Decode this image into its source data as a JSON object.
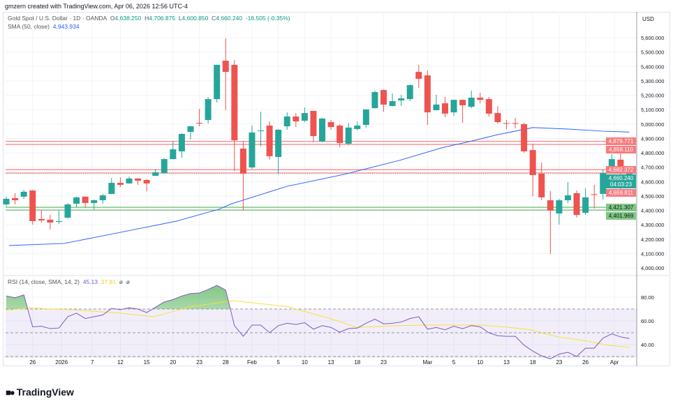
{
  "credit": "gmzern created with TradingView.com, Apr 06, 2026 12:56 UTC-4",
  "legend": {
    "symbol": "Gold Spot / U.S. Dollar · 1D · OANDA",
    "o_label": "O",
    "o": "4,638.250",
    "h_label": "H",
    "h": "4,706.875",
    "l_label": "L",
    "l": "4,600.850",
    "c_label": "C",
    "c": "4,660.240",
    "change": "-16.505 (-0.35%)",
    "sma_label": "SMA (50, close)",
    "sma_value": "4,943.934"
  },
  "rsi_legend": {
    "label": "RSI (14, close, SMA, 14, 2)",
    "rsi": "45.13",
    "sma": "37.81",
    "na1": "ø",
    "na2": "ø"
  },
  "currency": "USD",
  "brand": "TradingView",
  "colors": {
    "up": "#26a69a",
    "down": "#ef5350",
    "sma": "#2962ff",
    "rsi": "#7e57c2",
    "rsi_sma": "#f7e03a",
    "support": "#4caf50",
    "resistance": "#f23645"
  },
  "price_labels": [
    {
      "text": "4,879.771",
      "price": 4879.771,
      "kind": "resistance"
    },
    {
      "text": "4,858.110",
      "price": 4858.11,
      "kind": "resistance"
    },
    {
      "text": "4,682.372",
      "price": 4682.372,
      "kind": "resistance"
    },
    {
      "text": "4,660.240",
      "price": 4660.24,
      "kind": "last",
      "countdown": "04:03:23"
    },
    {
      "text": "4,659.811",
      "price": 4659.811,
      "kind": "resistance"
    },
    {
      "text": "4,421.307",
      "price": 4421.307,
      "kind": "support"
    },
    {
      "text": "4,401.969",
      "price": 4401.969,
      "kind": "support"
    }
  ],
  "chart_data": [
    {
      "type": "candlestick",
      "title": "Gold Spot / U.S. Dollar · 1D · OANDA",
      "ylim": [
        4000,
        5600
      ],
      "y_ticks": [
        "5,600.000",
        "5,500.000",
        "5,400.000",
        "5,300.000",
        "5,200.000",
        "5,100.000",
        "5,000.000",
        "4,900.000",
        "4,800.000",
        "4,700.000",
        "4,600.000",
        "4,500.000",
        "4,400.000",
        "4,300.000",
        "4,200.000",
        "4,100.000",
        "4,000.000"
      ],
      "x_labels": [
        {
          "text": "26",
          "bar": 3
        },
        {
          "text": "2026",
          "bar": 6.3
        },
        {
          "text": "7",
          "bar": 9.8
        },
        {
          "text": "12",
          "bar": 13
        },
        {
          "text": "15",
          "bar": 16
        },
        {
          "text": "20",
          "bar": 19
        },
        {
          "text": "23",
          "bar": 22
        },
        {
          "text": "28",
          "bar": 25
        },
        {
          "text": "Feb",
          "bar": 28
        },
        {
          "text": "5",
          "bar": 31
        },
        {
          "text": "10",
          "bar": 34
        },
        {
          "text": "13",
          "bar": 37
        },
        {
          "text": "18",
          "bar": 40
        },
        {
          "text": "23",
          "bar": 43
        },
        {
          "text": "Mar",
          "bar": 48
        },
        {
          "text": "5",
          "bar": 51
        },
        {
          "text": "10",
          "bar": 54
        },
        {
          "text": "13",
          "bar": 57
        },
        {
          "text": "18",
          "bar": 60
        },
        {
          "text": "23",
          "bar": 63
        },
        {
          "text": "26",
          "bar": 66
        },
        {
          "text": "Apr",
          "bar": 69.3
        }
      ],
      "ohlc": [
        [
          4441,
          4495,
          4427,
          4480
        ],
        [
          4485,
          4519,
          4441,
          4470
        ],
        [
          4495,
          4543,
          4480,
          4529
        ],
        [
          4538,
          4543,
          4301,
          4325
        ],
        [
          4340,
          4402,
          4315,
          4330
        ],
        [
          4335,
          4368,
          4267,
          4315
        ],
        [
          4320,
          4398,
          4306,
          4325
        ],
        [
          4349,
          4451,
          4344,
          4441
        ],
        [
          4446,
          4495,
          4422,
          4490
        ],
        [
          4495,
          4497,
          4417,
          4451
        ],
        [
          4451,
          4475,
          4402,
          4470
        ],
        [
          4470,
          4514,
          4446,
          4504
        ],
        [
          4514,
          4625,
          4512,
          4591
        ],
        [
          4591,
          4630,
          4562,
          4577
        ],
        [
          4587,
          4635,
          4585,
          4621
        ],
        [
          4621,
          4623,
          4577,
          4606
        ],
        [
          4611,
          4616,
          4533,
          4587
        ],
        [
          4640,
          4688,
          4638,
          4664
        ],
        [
          4659,
          4761,
          4655,
          4756
        ],
        [
          4756,
          4882,
          4754,
          4824
        ],
        [
          4810,
          4936,
          4766,
          4931
        ],
        [
          4945,
          4986,
          4892,
          4984
        ],
        [
          5008,
          5105,
          4984,
          5004
        ],
        [
          5028,
          5188,
          5004,
          5173
        ],
        [
          5173,
          5413,
          5149,
          5411
        ],
        [
          5440,
          5595,
          5096,
          5362
        ],
        [
          5411,
          5445,
          4674,
          4887
        ],
        [
          4829,
          4882,
          4398,
          4655
        ],
        [
          4698,
          4989,
          4688,
          4941
        ],
        [
          4953,
          5086,
          4844,
          4955
        ],
        [
          4989,
          5018,
          4752,
          4776
        ],
        [
          4771,
          4965,
          4650,
          4960
        ],
        [
          4984,
          5081,
          4960,
          5052
        ],
        [
          5052,
          5076,
          4979,
          5018
        ],
        [
          5023,
          5115,
          5013,
          5076
        ],
        [
          5091,
          5093,
          4873,
          4916
        ],
        [
          4878,
          5042,
          4873,
          5038
        ],
        [
          5013,
          5028,
          4960,
          4979
        ],
        [
          4989,
          4999,
          4839,
          4868
        ],
        [
          4863,
          5008,
          4853,
          4975
        ],
        [
          4965,
          5018,
          4955,
          4989
        ],
        [
          4994,
          5103,
          4975,
          5101
        ],
        [
          5110,
          5232,
          5108,
          5222
        ],
        [
          5236,
          5241,
          5086,
          5135
        ],
        [
          5125,
          5212,
          5123,
          5159
        ],
        [
          5164,
          5203,
          5125,
          5178
        ],
        [
          5173,
          5275,
          5159,
          5270
        ],
        [
          5362,
          5411,
          5251,
          5314
        ],
        [
          5338,
          5372,
          4994,
          5081
        ],
        [
          5096,
          5203,
          5094,
          5135
        ],
        [
          5144,
          5188,
          5047,
          5072
        ],
        [
          5081,
          5170,
          5057,
          5168
        ],
        [
          5168,
          5170,
          5008,
          5130
        ],
        [
          5120,
          5232,
          5110,
          5183
        ],
        [
          5183,
          5217,
          5144,
          5168
        ],
        [
          5173,
          5188,
          5052,
          5072
        ],
        [
          5076,
          5125,
          5004,
          5013
        ],
        [
          5006,
          5028,
          4965,
          5004
        ],
        [
          5006,
          5042,
          4970,
          5004
        ],
        [
          4999,
          5008,
          4800,
          4810
        ],
        [
          4819,
          4863,
          4499,
          4645
        ],
        [
          4655,
          4732,
          4470,
          4490
        ],
        [
          4470,
          4533,
          4097,
          4398
        ],
        [
          4378,
          4480,
          4301,
          4470
        ],
        [
          4470,
          4596,
          4451,
          4504
        ],
        [
          4519,
          4538,
          4349,
          4368
        ],
        [
          4383,
          4553,
          4368,
          4490
        ],
        [
          4512,
          4577,
          4412,
          4509
        ],
        [
          4514,
          4684,
          4475,
          4659
        ],
        [
          4664,
          4790,
          4655,
          4756
        ],
        [
          4752,
          4795,
          4548,
          4669
        ],
        [
          4638.25,
          4706.875,
          4600.85,
          4660.24
        ]
      ],
      "sma50": [
        [
          0.3,
          4155
        ],
        [
          6.6,
          4170
        ],
        [
          13,
          4247
        ],
        [
          19.4,
          4325
        ],
        [
          24.2,
          4407
        ],
        [
          25.7,
          4446
        ],
        [
          32,
          4567
        ],
        [
          38.5,
          4650
        ],
        [
          44.8,
          4747
        ],
        [
          49.6,
          4834
        ],
        [
          52.8,
          4878
        ],
        [
          56,
          4926
        ],
        [
          60,
          4975
        ],
        [
          64,
          4965
        ],
        [
          68,
          4950
        ],
        [
          71,
          4943.934
        ]
      ],
      "levels": [
        {
          "price": 4879.771,
          "kind": "resistance"
        },
        {
          "price": 4858.11,
          "kind": "resistance"
        },
        {
          "price": 4682.372,
          "kind": "resistance"
        },
        {
          "price": 4659.811,
          "kind": "resistance"
        },
        {
          "price": 4421.307,
          "kind": "support"
        },
        {
          "price": 4401.969,
          "kind": "support"
        }
      ],
      "last_price": 4660.24
    },
    {
      "type": "line",
      "title": "RSI (14, close, SMA, 14, 2)",
      "ylim": [
        22,
        98
      ],
      "y_ticks": [
        "80.00",
        "60.00",
        "40.00"
      ],
      "bands": {
        "upper": 70,
        "middle": 50,
        "lower": 30
      },
      "rsi": [
        81,
        79.5,
        82,
        55,
        55.5,
        53.5,
        54,
        63.5,
        66.5,
        62,
        63.5,
        65,
        70.5,
        69.5,
        71,
        70,
        67,
        71.5,
        76,
        78,
        81,
        83,
        83.5,
        86.5,
        90,
        86,
        56,
        47,
        56.5,
        56.5,
        50,
        56,
        58,
        57,
        58.5,
        53,
        56,
        54.5,
        50.5,
        53.5,
        54,
        58,
        61.5,
        57.5,
        58,
        59,
        62,
        63.5,
        53,
        54.5,
        52.5,
        55.5,
        53.5,
        56,
        55,
        50,
        47.5,
        47,
        47,
        39.5,
        34.5,
        30.5,
        28,
        32,
        33.5,
        30,
        37,
        37,
        45.5,
        49,
        46.5,
        45.13
      ],
      "rsi_sma": [
        [
          0,
          69
        ],
        [
          2.8,
          71
        ],
        [
          5,
          70
        ],
        [
          7.4,
          69.5
        ],
        [
          13,
          66.5
        ],
        [
          16.8,
          63.5
        ],
        [
          21,
          72
        ],
        [
          25.9,
          77
        ],
        [
          32.1,
          72
        ],
        [
          36.9,
          62
        ],
        [
          40,
          54.5
        ],
        [
          44.8,
          56
        ],
        [
          48,
          56.5
        ],
        [
          51.2,
          56.5
        ],
        [
          54.2,
          56.5
        ],
        [
          57.4,
          54.5
        ],
        [
          59.7,
          52.5
        ],
        [
          62.9,
          46.5
        ],
        [
          65.3,
          44
        ],
        [
          66.9,
          42
        ],
        [
          68.5,
          39.5
        ],
        [
          71,
          37.81
        ]
      ]
    }
  ]
}
